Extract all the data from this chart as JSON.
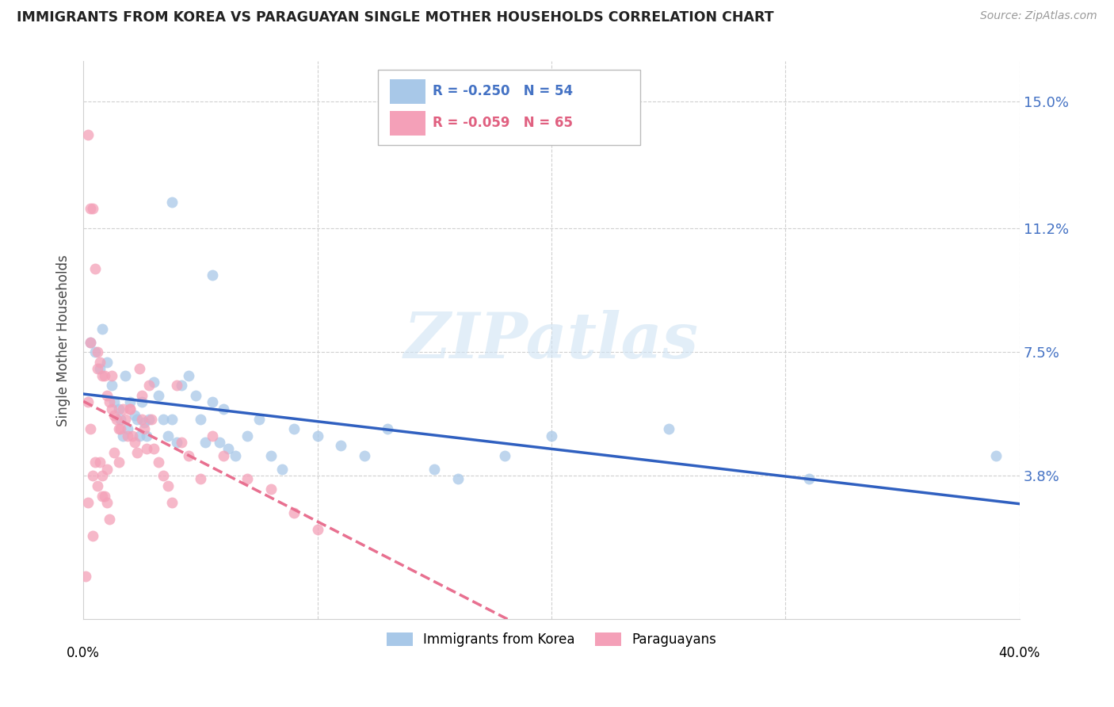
{
  "title": "IMMIGRANTS FROM KOREA VS PARAGUAYAN SINGLE MOTHER HOUSEHOLDS CORRELATION CHART",
  "source": "Source: ZipAtlas.com",
  "ylabel": "Single Mother Households",
  "yticks": [
    0.0,
    0.038,
    0.075,
    0.112,
    0.15
  ],
  "ytick_labels": [
    "",
    "3.8%",
    "7.5%",
    "11.2%",
    "15.0%"
  ],
  "xlim": [
    0.0,
    0.4
  ],
  "ylim": [
    -0.005,
    0.162
  ],
  "legend_blue_R": "R = -0.250",
  "legend_blue_N": "N = 54",
  "legend_pink_R": "R = -0.059",
  "legend_pink_N": "N = 65",
  "legend_label_blue": "Immigrants from Korea",
  "legend_label_pink": "Paraguayans",
  "blue_color": "#a8c8e8",
  "pink_color": "#f4a0b8",
  "blue_line_color": "#3060c0",
  "pink_line_color": "#e87090",
  "watermark": "ZIPatlas",
  "blue_scatter_x": [
    0.003,
    0.005,
    0.007,
    0.008,
    0.01,
    0.012,
    0.013,
    0.015,
    0.016,
    0.017,
    0.018,
    0.019,
    0.02,
    0.022,
    0.023,
    0.024,
    0.025,
    0.026,
    0.027,
    0.028,
    0.03,
    0.032,
    0.034,
    0.036,
    0.038,
    0.04,
    0.042,
    0.045,
    0.048,
    0.05,
    0.052,
    0.055,
    0.058,
    0.06,
    0.062,
    0.065,
    0.07,
    0.075,
    0.08,
    0.085,
    0.09,
    0.1,
    0.11,
    0.12,
    0.13,
    0.15,
    0.16,
    0.18,
    0.2,
    0.25,
    0.31,
    0.39,
    0.038,
    0.055
  ],
  "blue_scatter_y": [
    0.078,
    0.075,
    0.07,
    0.082,
    0.072,
    0.065,
    0.06,
    0.058,
    0.055,
    0.05,
    0.068,
    0.052,
    0.06,
    0.056,
    0.055,
    0.05,
    0.06,
    0.054,
    0.05,
    0.055,
    0.066,
    0.062,
    0.055,
    0.05,
    0.055,
    0.048,
    0.065,
    0.068,
    0.062,
    0.055,
    0.048,
    0.06,
    0.048,
    0.058,
    0.046,
    0.044,
    0.05,
    0.055,
    0.044,
    0.04,
    0.052,
    0.05,
    0.047,
    0.044,
    0.052,
    0.04,
    0.037,
    0.044,
    0.05,
    0.052,
    0.037,
    0.044,
    0.12,
    0.098
  ],
  "pink_scatter_x": [
    0.001,
    0.002,
    0.002,
    0.003,
    0.003,
    0.004,
    0.004,
    0.005,
    0.005,
    0.006,
    0.006,
    0.007,
    0.007,
    0.008,
    0.008,
    0.009,
    0.009,
    0.01,
    0.01,
    0.011,
    0.011,
    0.012,
    0.012,
    0.013,
    0.013,
    0.014,
    0.015,
    0.016,
    0.017,
    0.018,
    0.019,
    0.02,
    0.021,
    0.022,
    0.023,
    0.024,
    0.025,
    0.026,
    0.027,
    0.028,
    0.029,
    0.03,
    0.032,
    0.034,
    0.036,
    0.038,
    0.04,
    0.042,
    0.045,
    0.05,
    0.055,
    0.06,
    0.07,
    0.08,
    0.09,
    0.1,
    0.003,
    0.006,
    0.01,
    0.015,
    0.02,
    0.025,
    0.002,
    0.004,
    0.008
  ],
  "pink_scatter_y": [
    0.008,
    0.14,
    0.06,
    0.118,
    0.052,
    0.118,
    0.038,
    0.1,
    0.042,
    0.07,
    0.035,
    0.072,
    0.042,
    0.068,
    0.038,
    0.068,
    0.032,
    0.062,
    0.03,
    0.06,
    0.025,
    0.058,
    0.068,
    0.056,
    0.045,
    0.055,
    0.052,
    0.052,
    0.058,
    0.055,
    0.05,
    0.058,
    0.05,
    0.048,
    0.045,
    0.07,
    0.062,
    0.052,
    0.046,
    0.065,
    0.055,
    0.046,
    0.042,
    0.038,
    0.035,
    0.03,
    0.065,
    0.048,
    0.044,
    0.037,
    0.05,
    0.044,
    0.037,
    0.034,
    0.027,
    0.022,
    0.078,
    0.075,
    0.04,
    0.042,
    0.058,
    0.055,
    0.03,
    0.02,
    0.032
  ]
}
